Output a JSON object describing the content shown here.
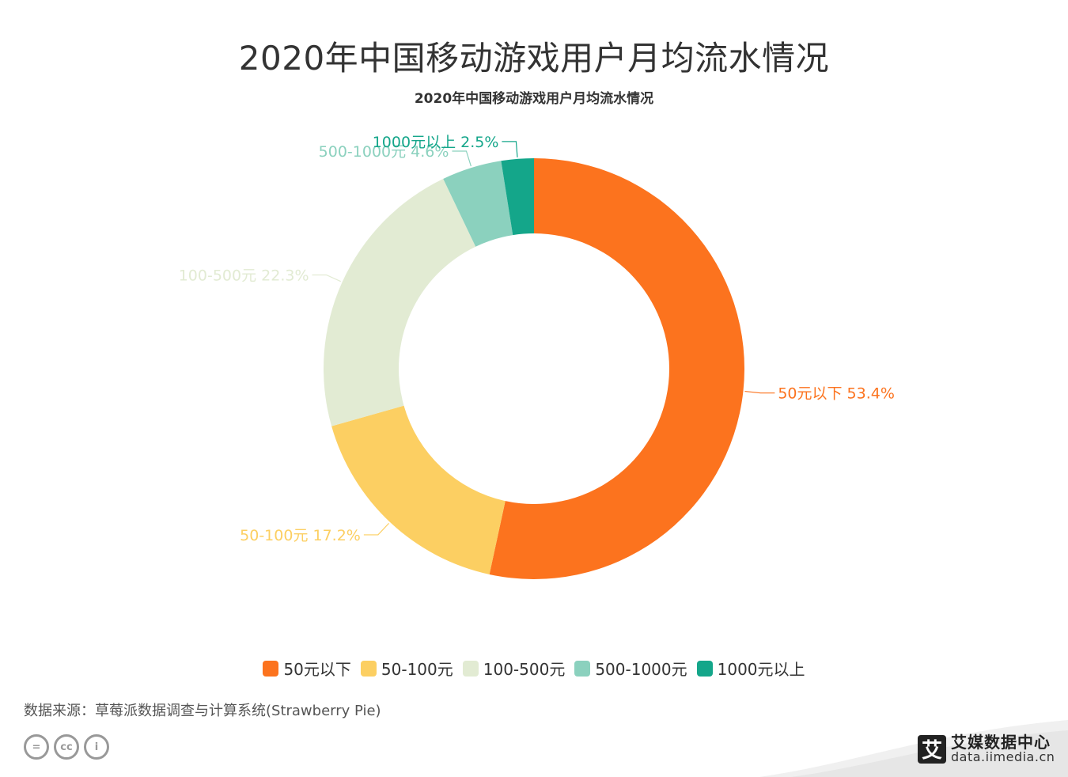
{
  "header": {
    "title": "2020年中国移动游戏用户月均流水情况"
  },
  "chart_data": {
    "type": "donut",
    "title": "2020年中国移动游戏用户月均流水情况",
    "categories": [
      "50元以下",
      "50-100元",
      "100-500元",
      "500-1000元",
      "1000元以上"
    ],
    "values": [
      53.4,
      17.2,
      22.3,
      4.6,
      2.5
    ],
    "value_labels": [
      "53.4%",
      "17.2%",
      "22.3%",
      "4.6%",
      "2.5%"
    ],
    "colors": [
      "#FC731E",
      "#FCCF62",
      "#E2EBD3",
      "#8BD1BE",
      "#14A68A"
    ],
    "legend_position": "bottom"
  },
  "footer": {
    "source": "数据来源：草莓派数据调查与计算系统(Strawberry Pie)",
    "cc_labels": [
      "=",
      "cc",
      "i"
    ],
    "brand_name": "艾媒数据中心",
    "brand_logo": "艾",
    "brand_url": "data.iimedia.cn"
  }
}
